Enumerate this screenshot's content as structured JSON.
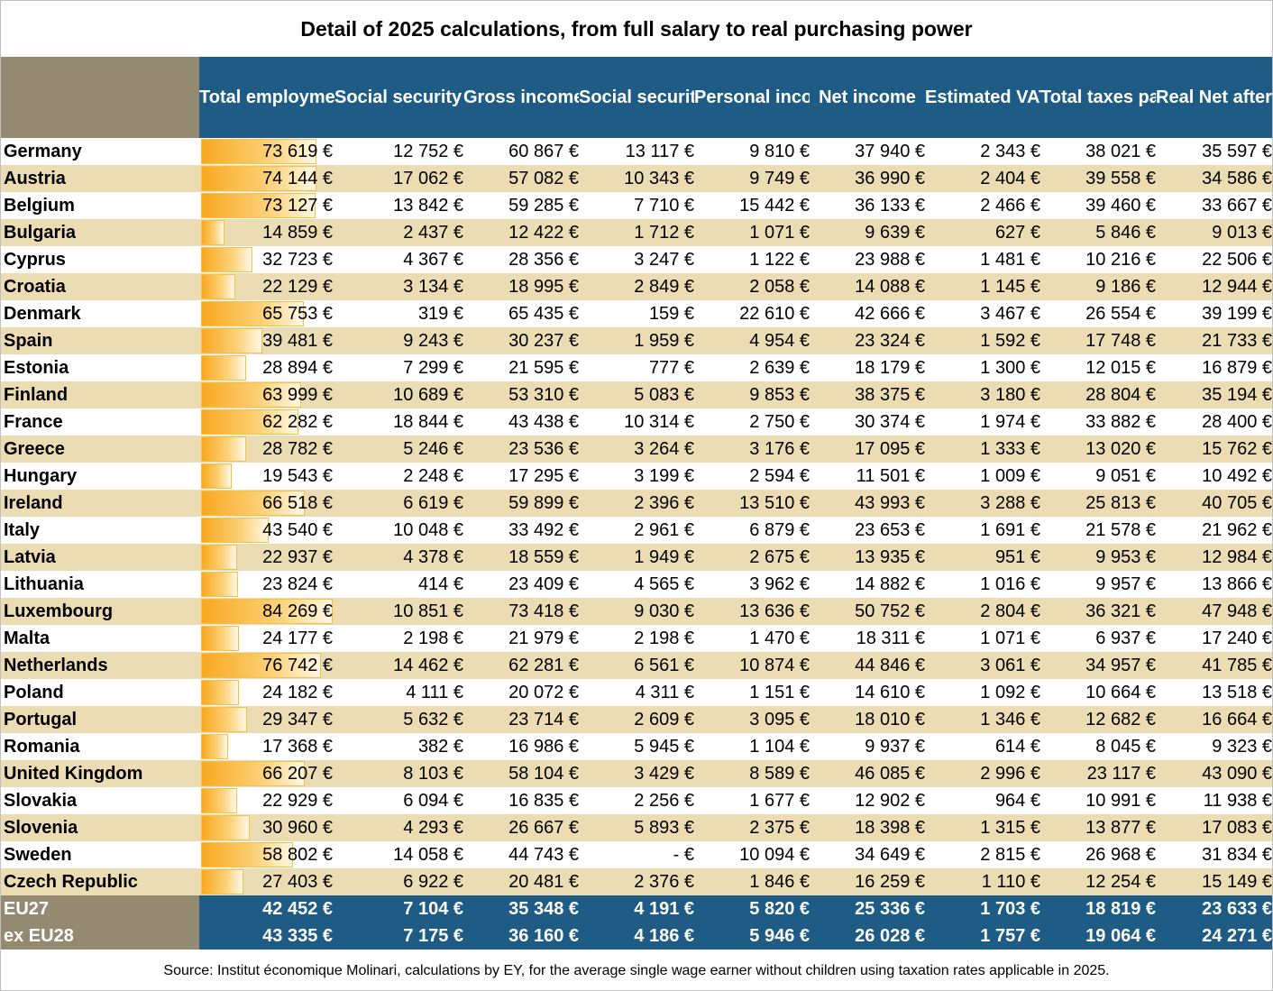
{
  "title": "Detail of 2025 calculations, from full salary to real purchasing power",
  "columns": [
    "Total employment cost",
    "Social security employer",
    "Gross income",
    "Social security employee",
    "Personal income taxes",
    "Net income",
    "Estimated VAT",
    "Total taxes paid",
    "Real Net after payroll taxes+ VAT"
  ],
  "bar_max_value": 84269,
  "bar_color": "#f9a820",
  "header_color": "#1f5c85",
  "corner_color": "#948a72",
  "band_color": "#ecdcb4",
  "rows": [
    {
      "country": "Germany",
      "tec_value": 73619,
      "cells": [
        "73 619 €",
        "12 752 €",
        "60 867 €",
        "13 117 €",
        "9 810 €",
        "37 940 €",
        "2 343 €",
        "38 021 €",
        "35 597 €"
      ]
    },
    {
      "country": "Austria",
      "tec_value": 74144,
      "cells": [
        "74 144 €",
        "17 062 €",
        "57 082 €",
        "10 343 €",
        "9 749 €",
        "36 990 €",
        "2 404 €",
        "39 558 €",
        "34 586 €"
      ]
    },
    {
      "country": "Belgium",
      "tec_value": 73127,
      "cells": [
        "73 127 €",
        "13 842 €",
        "59 285 €",
        "7 710 €",
        "15 442 €",
        "36 133 €",
        "2 466 €",
        "39 460 €",
        "33 667 €"
      ]
    },
    {
      "country": "Bulgaria",
      "tec_value": 14859,
      "cells": [
        "14 859 €",
        "2 437 €",
        "12 422 €",
        "1 712 €",
        "1 071 €",
        "9 639 €",
        "627 €",
        "5 846 €",
        "9 013 €"
      ]
    },
    {
      "country": "Cyprus",
      "tec_value": 32723,
      "cells": [
        "32 723 €",
        "4 367 €",
        "28 356 €",
        "3 247 €",
        "1 122 €",
        "23 988 €",
        "1 481 €",
        "10 216 €",
        "22 506 €"
      ]
    },
    {
      "country": "Croatia",
      "tec_value": 22129,
      "cells": [
        "22 129 €",
        "3 134 €",
        "18 995 €",
        "2 849 €",
        "2 058 €",
        "14 088 €",
        "1 145 €",
        "9 186 €",
        "12 944 €"
      ]
    },
    {
      "country": "Denmark",
      "tec_value": 65753,
      "cells": [
        "65 753 €",
        "319 €",
        "65 435 €",
        "159 €",
        "22 610 €",
        "42 666 €",
        "3 467 €",
        "26 554 €",
        "39 199 €"
      ]
    },
    {
      "country": "Spain",
      "tec_value": 39481,
      "cells": [
        "39 481 €",
        "9 243 €",
        "30 237 €",
        "1 959 €",
        "4 954 €",
        "23 324 €",
        "1 592 €",
        "17 748 €",
        "21 733 €"
      ]
    },
    {
      "country": "Estonia",
      "tec_value": 28894,
      "cells": [
        "28 894 €",
        "7 299 €",
        "21 595 €",
        "777 €",
        "2 639 €",
        "18 179 €",
        "1 300 €",
        "12 015 €",
        "16 879 €"
      ]
    },
    {
      "country": "Finland",
      "tec_value": 63999,
      "cells": [
        "63 999 €",
        "10 689 €",
        "53 310 €",
        "5 083 €",
        "9 853 €",
        "38 375 €",
        "3 180 €",
        "28 804 €",
        "35 194 €"
      ]
    },
    {
      "country": "France",
      "tec_value": 62282,
      "cells": [
        "62 282 €",
        "18 844 €",
        "43 438 €",
        "10 314 €",
        "2 750 €",
        "30 374 €",
        "1 974 €",
        "33 882 €",
        "28 400 €"
      ]
    },
    {
      "country": "Greece",
      "tec_value": 28782,
      "cells": [
        "28 782 €",
        "5 246 €",
        "23 536 €",
        "3 264 €",
        "3 176 €",
        "17 095 €",
        "1 333 €",
        "13 020 €",
        "15 762 €"
      ]
    },
    {
      "country": "Hungary",
      "tec_value": 19543,
      "cells": [
        "19 543 €",
        "2 248 €",
        "17 295 €",
        "3 199 €",
        "2 594 €",
        "11 501 €",
        "1 009 €",
        "9 051 €",
        "10 492 €"
      ]
    },
    {
      "country": "Ireland",
      "tec_value": 66518,
      "cells": [
        "66 518 €",
        "6 619 €",
        "59 899 €",
        "2 396 €",
        "13 510 €",
        "43 993 €",
        "3 288 €",
        "25 813 €",
        "40 705 €"
      ]
    },
    {
      "country": "Italy",
      "tec_value": 43540,
      "cells": [
        "43 540 €",
        "10 048 €",
        "33 492 €",
        "2 961 €",
        "6 879 €",
        "23 653 €",
        "1 691 €",
        "21 578 €",
        "21 962 €"
      ]
    },
    {
      "country": "Latvia",
      "tec_value": 22937,
      "cells": [
        "22 937 €",
        "4 378 €",
        "18 559 €",
        "1 949 €",
        "2 675 €",
        "13 935 €",
        "951 €",
        "9 953 €",
        "12 984 €"
      ]
    },
    {
      "country": "Lithuania",
      "tec_value": 23824,
      "cells": [
        "23 824 €",
        "414 €",
        "23 409 €",
        "4 565 €",
        "3 962 €",
        "14 882 €",
        "1 016 €",
        "9 957 €",
        "13 866 €"
      ]
    },
    {
      "country": "Luxembourg",
      "tec_value": 84269,
      "cells": [
        "84 269 €",
        "10 851 €",
        "73 418 €",
        "9 030 €",
        "13 636 €",
        "50 752 €",
        "2 804 €",
        "36 321 €",
        "47 948 €"
      ]
    },
    {
      "country": "Malta",
      "tec_value": 24177,
      "cells": [
        "24 177 €",
        "2 198 €",
        "21 979 €",
        "2 198 €",
        "1 470 €",
        "18 311 €",
        "1 071 €",
        "6 937 €",
        "17 240 €"
      ]
    },
    {
      "country": "Netherlands",
      "tec_value": 76742,
      "cells": [
        "76 742 €",
        "14 462 €",
        "62 281 €",
        "6 561 €",
        "10 874 €",
        "44 846 €",
        "3 061 €",
        "34 957 €",
        "41 785 €"
      ]
    },
    {
      "country": "Poland",
      "tec_value": 24182,
      "cells": [
        "24 182 €",
        "4 111 €",
        "20 072 €",
        "4 311 €",
        "1 151 €",
        "14 610 €",
        "1 092 €",
        "10 664 €",
        "13 518 €"
      ]
    },
    {
      "country": "Portugal",
      "tec_value": 29347,
      "cells": [
        "29 347 €",
        "5 632 €",
        "23 714 €",
        "2 609 €",
        "3 095 €",
        "18 010 €",
        "1 346 €",
        "12 682 €",
        "16 664 €"
      ]
    },
    {
      "country": "Romania",
      "tec_value": 17368,
      "cells": [
        "17 368 €",
        "382 €",
        "16 986 €",
        "5 945 €",
        "1 104 €",
        "9 937 €",
        "614 €",
        "8 045 €",
        "9 323 €"
      ]
    },
    {
      "country": "United Kingdom",
      "tec_value": 66207,
      "cells": [
        "66 207 €",
        "8 103 €",
        "58 104 €",
        "3 429 €",
        "8 589 €",
        "46 085 €",
        "2 996 €",
        "23 117 €",
        "43 090 €"
      ]
    },
    {
      "country": "Slovakia",
      "tec_value": 22929,
      "cells": [
        "22 929 €",
        "6 094 €",
        "16 835 €",
        "2 256 €",
        "1 677 €",
        "12 902 €",
        "964 €",
        "10 991 €",
        "11 938 €"
      ]
    },
    {
      "country": "Slovenia",
      "tec_value": 30960,
      "cells": [
        "30 960 €",
        "4 293 €",
        "26 667 €",
        "5 893 €",
        "2 375 €",
        "18 398 €",
        "1 315 €",
        "13 877 €",
        "17 083 €"
      ]
    },
    {
      "country": "Sweden",
      "tec_value": 58802,
      "cells": [
        "58 802 €",
        "14 058 €",
        "44 743 €",
        "-      €",
        "10 094 €",
        "34 649 €",
        "2 815 €",
        "26 968 €",
        "31 834 €"
      ]
    },
    {
      "country": "Czech Republic",
      "tec_value": 27403,
      "cells": [
        "27 403 €",
        "6 922 €",
        "20 481 €",
        "2 376 €",
        "1 846 €",
        "16 259 €",
        "1 110 €",
        "12 254 €",
        "15 149 €"
      ]
    }
  ],
  "totals": [
    {
      "label": "EU27",
      "cells": [
        "42 452 €",
        "7 104 €",
        "35 348 €",
        "4 191 €",
        "5 820 €",
        "25 336 €",
        "1 703 €",
        "18 819 €",
        "23 633 €"
      ]
    },
    {
      "label": "ex EU28",
      "cells": [
        "43 335 €",
        "7 175 €",
        "36 160 €",
        "4 186 €",
        "5 946 €",
        "26 028 €",
        "1 757 €",
        "19 064 €",
        "24 271 €"
      ]
    }
  ],
  "source": "Source: Institut économique Molinari, calculations by EY, for the average single wage earner without children using taxation rates applicable in 2025."
}
